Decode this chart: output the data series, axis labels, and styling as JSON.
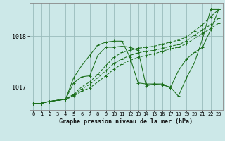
{
  "bg_color": "#cce8e8",
  "grid_color": "#99bbbb",
  "line_color": "#1a6e1a",
  "title": "Graphe pression niveau de la mer (hPa)",
  "xlim": [
    -0.5,
    23.5
  ],
  "ylim": [
    1016.55,
    1018.65
  ],
  "yticks": [
    1017,
    1018
  ],
  "xticks": [
    0,
    1,
    2,
    3,
    4,
    5,
    6,
    7,
    8,
    9,
    10,
    11,
    12,
    13,
    14,
    15,
    16,
    17,
    18,
    19,
    20,
    21,
    22,
    23
  ],
  "series": [
    {
      "x": [
        0,
        1,
        2,
        3,
        4,
        5,
        6,
        7,
        8,
        9,
        10,
        11,
        12,
        13,
        14,
        15,
        16,
        17,
        18,
        19,
        20,
        21,
        22,
        23
      ],
      "y": [
        1016.68,
        1016.68,
        1016.72,
        1016.74,
        1016.76,
        1016.82,
        1016.92,
        1016.98,
        1017.1,
        1017.22,
        1017.35,
        1017.45,
        1017.52,
        1017.58,
        1017.62,
        1017.65,
        1017.7,
        1017.75,
        1017.78,
        1017.85,
        1017.95,
        1018.05,
        1018.15,
        1018.25
      ],
      "style": "--",
      "marker": "+"
    },
    {
      "x": [
        0,
        1,
        2,
        3,
        4,
        5,
        6,
        7,
        8,
        9,
        10,
        11,
        12,
        13,
        14,
        15,
        16,
        17,
        18,
        19,
        20,
        21,
        22,
        23
      ],
      "y": [
        1016.68,
        1016.68,
        1016.72,
        1016.74,
        1016.76,
        1016.84,
        1016.96,
        1017.05,
        1017.18,
        1017.32,
        1017.46,
        1017.55,
        1017.62,
        1017.67,
        1017.7,
        1017.72,
        1017.76,
        1017.8,
        1017.83,
        1017.9,
        1018.02,
        1018.12,
        1018.22,
        1018.35
      ],
      "style": "--",
      "marker": "+"
    },
    {
      "x": [
        0,
        1,
        2,
        3,
        4,
        5,
        6,
        7,
        8,
        9,
        10,
        11,
        12,
        13,
        14,
        15,
        16,
        17,
        18,
        19,
        20,
        21,
        22,
        23
      ],
      "y": [
        1016.68,
        1016.68,
        1016.72,
        1016.74,
        1016.76,
        1016.86,
        1017.0,
        1017.1,
        1017.25,
        1017.42,
        1017.58,
        1017.68,
        1017.72,
        1017.76,
        1017.78,
        1017.8,
        1017.84,
        1017.88,
        1017.92,
        1017.98,
        1018.1,
        1018.22,
        1018.38,
        1018.52
      ],
      "style": "--",
      "marker": "+"
    },
    {
      "x": [
        0,
        1,
        2,
        3,
        4,
        5,
        6,
        7,
        8,
        9,
        10,
        11,
        12,
        13,
        14,
        15,
        16,
        17,
        18,
        19,
        20,
        21,
        22,
        23
      ],
      "y": [
        1016.68,
        1016.68,
        1016.72,
        1016.74,
        1016.76,
        1017.08,
        1017.2,
        1017.22,
        1017.62,
        1017.78,
        1017.78,
        1017.8,
        1017.78,
        1017.72,
        1017.02,
        1017.06,
        1017.06,
        1016.98,
        1017.32,
        1017.55,
        1017.68,
        1017.78,
        1018.12,
        1018.52
      ],
      "style": "-",
      "marker": "+"
    },
    {
      "x": [
        0,
        1,
        2,
        3,
        4,
        5,
        6,
        7,
        8,
        9,
        10,
        11,
        12,
        13,
        14,
        15,
        16,
        17,
        18,
        19,
        20,
        21,
        22,
        23
      ],
      "y": [
        1016.68,
        1016.68,
        1016.72,
        1016.74,
        1016.76,
        1017.18,
        1017.42,
        1017.62,
        1017.82,
        1017.88,
        1017.9,
        1017.9,
        1017.58,
        1017.08,
        1017.06,
        1017.06,
        1017.04,
        1017.0,
        1016.82,
        1017.18,
        1017.48,
        1017.95,
        1018.52,
        1018.52
      ],
      "style": "-",
      "marker": "+"
    }
  ]
}
